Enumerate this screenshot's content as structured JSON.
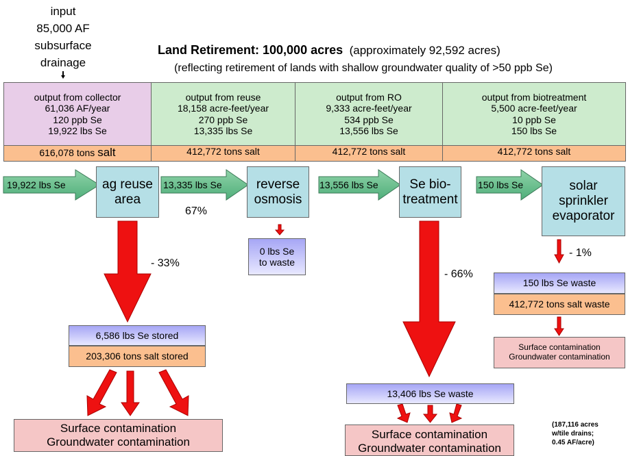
{
  "input": {
    "lines": [
      "input",
      "85,000 AF",
      "subsurface",
      "drainage"
    ]
  },
  "title": {
    "bold": "Land Retirement: 100,000 acres",
    "rest": "(approximately 92,592 acres)"
  },
  "subtitle": "(reflecting retirement of lands with shallow groundwater quality of >50 ppb Se)",
  "table": {
    "columns": [
      {
        "lines": [
          "output from collector",
          "61,036 AF/year",
          "120 ppb Se",
          "19,922 lbs Se"
        ],
        "salt": "616,078 tons",
        "salt_unit": "salt"
      },
      {
        "lines": [
          "output from reuse",
          "18,158 acre-feet/year",
          "270 ppb Se",
          "13,335 lbs Se"
        ],
        "salt": "412,772 tons salt"
      },
      {
        "lines": [
          "output from RO",
          "9,333 acre-feet/year",
          "534 ppb Se",
          "13,556 lbs Se"
        ],
        "salt": "412,772 tons salt"
      },
      {
        "lines": [
          "output from biotreatment",
          "5,500 acre-feet/year",
          "10 ppb Se",
          "150 lbs Se"
        ],
        "salt": "412,772 tons salt"
      }
    ]
  },
  "flow": {
    "arrows": [
      "19,922 lbs Se",
      "13,335 lbs Se",
      "13,556 lbs Se",
      "150 lbs Se"
    ],
    "processes": [
      [
        "ag reuse",
        "area"
      ],
      [
        "reverse",
        "osmosis"
      ],
      [
        "Se bio-",
        "treatment"
      ],
      [
        "solar",
        "sprinkler",
        "evaporator"
      ]
    ],
    "reuse_percent": "67%",
    "losses": [
      "- 33%",
      "- 66%",
      "- 1%"
    ]
  },
  "outputs": {
    "ro_waste": [
      "0 lbs Se",
      "to waste"
    ],
    "reuse_stored": {
      "se": "6,586 lbs Se stored",
      "salt": "203,306 tons salt stored",
      "contamination": [
        "Surface contamination",
        "Groundwater contamination"
      ]
    },
    "bio_waste": {
      "se": "13,406 lbs Se waste",
      "contamination": [
        "Surface contamination",
        "Groundwater contamination"
      ]
    },
    "evap_waste": {
      "se": "150 lbs Se waste",
      "salt": "412,772 tons salt waste",
      "contamination": [
        "Surface contamination",
        "Groundwater contamination"
      ]
    }
  },
  "note": [
    "(187,116 acres",
    "w/tile drains;",
    "0.45 AF/acre)"
  ]
}
